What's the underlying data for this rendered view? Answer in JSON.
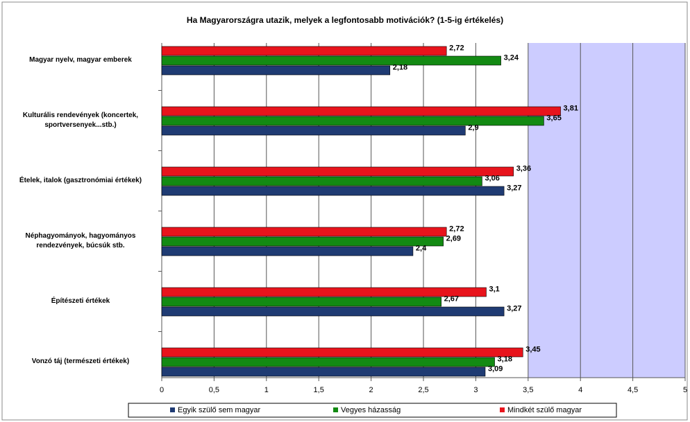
{
  "chart_data": {
    "type": "bar",
    "orientation": "horizontal",
    "title": "Ha Magyarországra utazik, melyek a legfontosabb motivációk? (1-5-ig értékelés)",
    "categories": [
      "Magyar nyelv, magyar emberek",
      "Kulturális rendevények (koncertek, sportversenyek...stb.)",
      "Ételek, italok (gasztronómiai értékek)",
      "Néphagyományok, hagyományos rendezvények, búcsúk stb.",
      "Építészeti értékek",
      "Vonzó táj (természeti értékek)"
    ],
    "series": [
      {
        "name": "Egyik szülő sem magyar",
        "color": "#1f3b73",
        "values": [
          2.18,
          2.9,
          3.27,
          2.4,
          3.27,
          3.09
        ],
        "value_labels": [
          "2,18",
          "2,9",
          "3,27",
          "2,4",
          "3,27",
          "3,09"
        ]
      },
      {
        "name": "Vegyes házasság",
        "color": "#138a13",
        "values": [
          3.24,
          3.65,
          3.06,
          2.69,
          2.67,
          3.18
        ],
        "value_labels": [
          "3,24",
          "3,65",
          "3,06",
          "2,69",
          "2,67",
          "3,18"
        ]
      },
      {
        "name": "Mindkét szülő magyar",
        "color": "#e8141c",
        "values": [
          2.72,
          3.81,
          3.36,
          2.72,
          3.1,
          3.45
        ],
        "value_labels": [
          "2,72",
          "3,81",
          "3,36",
          "2,72",
          "3,1",
          "3,45"
        ]
      }
    ],
    "xlim": [
      0,
      5
    ],
    "xticks": [
      0,
      {
        "value": 0.5,
        "label": "0,5"
      },
      1,
      {
        "value": 1.5,
        "label": "1,5"
      },
      2,
      {
        "value": 2.5,
        "label": "2,5"
      },
      3,
      {
        "value": 3.5,
        "label": "3,5"
      },
      4,
      {
        "value": 4.5,
        "label": "4,5"
      },
      5
    ],
    "grid": true,
    "legend": "bottom"
  }
}
